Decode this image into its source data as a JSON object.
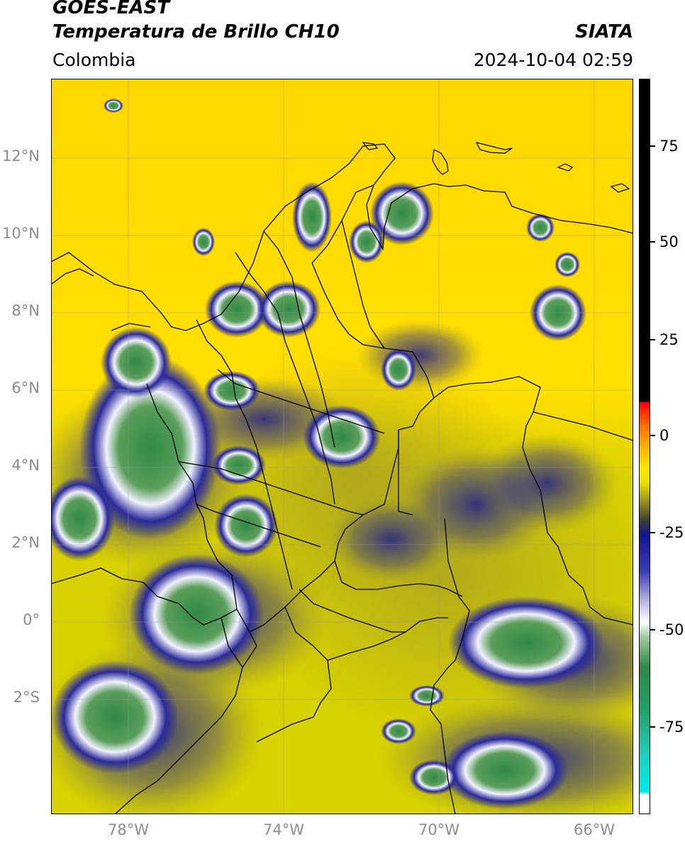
{
  "header": {
    "satellite": "GOES-EAST",
    "product": "Temperatura de Brillo CH10",
    "brand": "SIATA",
    "region": "Colombia",
    "timestamp": "2024-10-04 02:59"
  },
  "map": {
    "extent": {
      "lon_min": -80,
      "lon_max": -65,
      "lat_min": -5,
      "lat_max": 14
    },
    "lat_ticks": [
      {
        "value": 12,
        "label": "12°N"
      },
      {
        "value": 10,
        "label": "10°N"
      },
      {
        "value": 8,
        "label": "8°N"
      },
      {
        "value": 6,
        "label": "6°N"
      },
      {
        "value": 4,
        "label": "4°N"
      },
      {
        "value": 2,
        "label": "2°N"
      },
      {
        "value": 0,
        "label": "0°"
      },
      {
        "value": -2,
        "label": "2°S"
      }
    ],
    "lon_ticks": [
      {
        "value": -78,
        "label": "78°W"
      },
      {
        "value": -74,
        "label": "74°W"
      },
      {
        "value": -70,
        "label": "70°W"
      },
      {
        "value": -66,
        "label": "66°W"
      }
    ],
    "colors": {
      "background": "#e6de00",
      "warm_north": "#ffd200",
      "cloud_blue": "#1c1c8c",
      "cloud_white": "#f0f0ff",
      "cloud_green": "#2f8a45",
      "border": "#000000"
    }
  },
  "colorbar": {
    "range": [
      -95,
      90
    ],
    "ticks": [
      {
        "value": 75,
        "label": "75"
      },
      {
        "value": 50,
        "label": "50"
      },
      {
        "value": 25,
        "label": "25"
      },
      {
        "value": 0,
        "label": "0"
      },
      {
        "value": -25,
        "label": "-25"
      },
      {
        "value": -50,
        "label": "-50"
      },
      {
        "value": -75,
        "label": "-75"
      }
    ]
  }
}
